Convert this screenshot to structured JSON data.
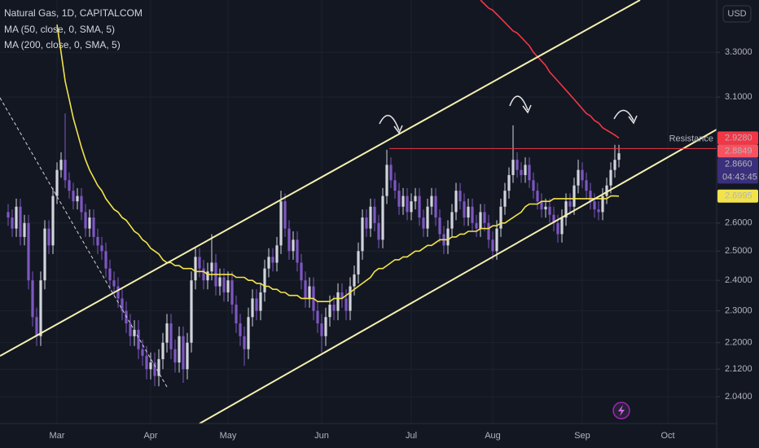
{
  "chart_data": {
    "type": "candlestick",
    "title": "Natural Gas, 1D, CAPITALCOM",
    "currency": "USD",
    "log_scale": true,
    "grid": true,
    "up_color": "#d1d4dc",
    "down_color": "#7e57c2",
    "ylim": [
      1.965,
      3.55
    ],
    "yticks": [
      {
        "value": 3.3,
        "label": "3.3000"
      },
      {
        "value": 3.1,
        "label": "3.1000"
      },
      {
        "value": 2.6,
        "label": "2.6000"
      },
      {
        "value": 2.5,
        "label": "2.5000"
      },
      {
        "value": 2.4,
        "label": "2.4000"
      },
      {
        "value": 2.3,
        "label": "2.3000"
      },
      {
        "value": 2.2,
        "label": "2.2000"
      },
      {
        "value": 2.12,
        "label": "2.1200"
      },
      {
        "value": 2.04,
        "label": "2.0400"
      }
    ],
    "categories": [
      null,
      null,
      null,
      null,
      null,
      null,
      null,
      null,
      null,
      null,
      null,
      null,
      "Mar",
      null,
      null,
      null,
      null,
      null,
      null,
      null,
      null,
      null,
      null,
      null,
      null,
      null,
      null,
      null,
      null,
      null,
      null,
      null,
      null,
      null,
      null,
      "Apr",
      null,
      null,
      null,
      null,
      null,
      null,
      null,
      null,
      null,
      null,
      null,
      null,
      null,
      null,
      null,
      null,
      null,
      null,
      "May",
      null,
      null,
      null,
      null,
      null,
      null,
      null,
      null,
      null,
      null,
      null,
      null,
      null,
      null,
      null,
      null,
      null,
      null,
      null,
      null,
      null,
      null,
      "Jun",
      null,
      null,
      null,
      null,
      null,
      null,
      null,
      null,
      null,
      null,
      null,
      null,
      null,
      null,
      null,
      null,
      null,
      null,
      null,
      null,
      null,
      "Jul",
      null,
      null,
      null,
      null,
      null,
      null,
      null,
      null,
      null,
      null,
      null,
      null,
      null,
      null,
      null,
      null,
      null,
      null,
      null,
      "Aug",
      null,
      null,
      null,
      null,
      null,
      null,
      null,
      null,
      null,
      null,
      null,
      null,
      null,
      null,
      null,
      null,
      null,
      null,
      null,
      null,
      null,
      "Sep",
      null,
      null,
      null,
      null,
      null,
      null,
      null,
      null,
      null,
      null,
      null,
      null,
      null,
      null,
      null,
      null,
      null,
      null,
      null,
      null,
      "Oct",
      null,
      null,
      null,
      null,
      null,
      null,
      null,
      null,
      null,
      null
    ],
    "open": [
      2.64,
      2.62,
      2.58,
      2.66,
      2.55,
      2.6,
      2.4,
      2.28,
      2.22,
      2.4,
      2.58,
      2.52,
      2.7,
      2.8,
      2.84,
      2.76,
      2.72,
      2.68,
      2.7,
      2.64,
      2.58,
      2.62,
      2.55,
      2.52,
      2.5,
      2.44,
      2.4,
      2.38,
      2.34,
      2.3,
      2.26,
      2.22,
      2.24,
      2.18,
      2.16,
      2.12,
      2.14,
      2.1,
      2.15,
      2.2,
      2.26,
      2.18,
      2.14,
      2.22,
      2.12,
      2.2,
      2.4,
      2.48,
      2.44,
      2.4,
      2.43,
      2.46,
      2.38,
      2.41,
      2.36,
      2.4,
      2.32,
      2.26,
      2.22,
      2.18,
      2.28,
      2.34,
      2.3,
      2.36,
      2.44,
      2.48,
      2.46,
      2.52,
      2.68,
      2.58,
      2.5,
      2.54,
      2.46,
      2.4,
      2.34,
      2.38,
      2.3,
      2.26,
      2.22,
      2.28,
      2.32,
      2.3,
      2.36,
      2.34,
      2.3,
      2.38,
      2.42,
      2.5,
      2.62,
      2.58,
      2.66,
      2.6,
      2.54,
      2.7,
      2.82,
      2.76,
      2.72,
      2.66,
      2.7,
      2.64,
      2.68,
      2.7,
      2.62,
      2.58,
      2.66,
      2.7,
      2.62,
      2.56,
      2.52,
      2.58,
      2.64,
      2.72,
      2.68,
      2.62,
      2.66,
      2.6,
      2.58,
      2.64,
      2.6,
      2.54,
      2.5,
      2.58,
      2.66,
      2.72,
      2.78,
      2.84,
      2.8,
      2.78,
      2.82,
      2.76,
      2.72,
      2.68,
      2.65,
      2.66,
      2.63,
      2.6,
      2.56,
      2.62,
      2.68,
      2.66,
      2.74,
      2.8,
      2.76,
      2.72,
      2.68,
      2.65,
      2.64,
      2.7,
      2.74,
      2.8,
      2.84,
      null,
      null,
      null,
      null,
      null,
      null,
      null,
      null,
      null,
      null,
      null,
      null,
      null,
      null,
      null,
      null,
      null,
      null,
      null,
      null,
      null,
      null
    ],
    "high": [
      2.67,
      2.65,
      2.69,
      2.69,
      2.63,
      2.63,
      2.43,
      2.31,
      2.43,
      2.61,
      2.61,
      2.73,
      2.83,
      2.87,
      3.03,
      2.79,
      2.75,
      2.73,
      2.73,
      2.67,
      2.65,
      2.65,
      2.58,
      2.55,
      2.53,
      2.47,
      2.43,
      2.41,
      2.37,
      2.33,
      2.29,
      2.27,
      2.27,
      2.21,
      2.19,
      2.17,
      2.17,
      2.18,
      2.23,
      2.29,
      2.29,
      2.21,
      2.25,
      2.25,
      2.23,
      2.43,
      2.51,
      2.51,
      2.47,
      2.46,
      2.56,
      2.49,
      2.44,
      2.44,
      2.43,
      2.43,
      2.35,
      2.29,
      2.25,
      2.31,
      2.37,
      2.37,
      2.39,
      2.47,
      2.51,
      2.51,
      2.55,
      2.72,
      2.71,
      2.61,
      2.57,
      2.57,
      2.49,
      2.43,
      2.41,
      2.41,
      2.33,
      2.29,
      2.31,
      2.35,
      2.35,
      2.39,
      2.39,
      2.37,
      2.41,
      2.45,
      2.53,
      2.65,
      2.65,
      2.69,
      2.69,
      2.63,
      2.73,
      2.88,
      2.85,
      2.79,
      2.75,
      2.73,
      2.73,
      2.71,
      2.73,
      2.73,
      2.65,
      2.69,
      2.73,
      2.73,
      2.65,
      2.59,
      2.61,
      2.67,
      2.75,
      2.75,
      2.71,
      2.69,
      2.69,
      2.63,
      2.67,
      2.67,
      2.63,
      2.57,
      2.61,
      2.69,
      2.75,
      2.81,
      2.98,
      2.87,
      2.83,
      2.85,
      2.85,
      2.79,
      2.75,
      2.71,
      2.69,
      2.69,
      2.66,
      2.63,
      2.65,
      2.71,
      2.71,
      2.77,
      2.84,
      2.83,
      2.79,
      2.75,
      2.71,
      2.68,
      2.73,
      2.77,
      2.83,
      2.9,
      2.9,
      null,
      null,
      null,
      null,
      null,
      null,
      null,
      null,
      null,
      null,
      null,
      null,
      null,
      null,
      null,
      null,
      null,
      null,
      null,
      null,
      null,
      null
    ],
    "low": [
      2.59,
      2.55,
      2.55,
      2.52,
      2.52,
      2.37,
      2.25,
      2.19,
      2.19,
      2.37,
      2.49,
      2.49,
      2.67,
      2.77,
      2.73,
      2.69,
      2.65,
      2.65,
      2.61,
      2.55,
      2.55,
      2.52,
      2.49,
      2.47,
      2.41,
      2.37,
      2.35,
      2.31,
      2.27,
      2.23,
      2.19,
      2.19,
      2.15,
      2.13,
      2.09,
      2.09,
      2.07,
      2.07,
      2.12,
      2.17,
      2.15,
      2.11,
      2.11,
      2.08,
      2.09,
      2.17,
      2.37,
      2.41,
      2.37,
      2.37,
      2.4,
      2.35,
      2.35,
      2.33,
      2.33,
      2.29,
      2.23,
      2.19,
      2.13,
      2.15,
      2.25,
      2.27,
      2.27,
      2.33,
      2.41,
      2.43,
      2.43,
      2.49,
      2.55,
      2.47,
      2.47,
      2.43,
      2.37,
      2.31,
      2.31,
      2.27,
      2.23,
      2.17,
      2.19,
      2.25,
      2.27,
      2.27,
      2.31,
      2.27,
      2.27,
      2.35,
      2.39,
      2.47,
      2.55,
      2.55,
      2.57,
      2.51,
      2.51,
      2.67,
      2.73,
      2.69,
      2.63,
      2.63,
      2.61,
      2.61,
      2.65,
      2.59,
      2.55,
      2.55,
      2.63,
      2.59,
      2.53,
      2.49,
      2.49,
      2.55,
      2.61,
      2.65,
      2.59,
      2.59,
      2.57,
      2.55,
      2.55,
      2.57,
      2.51,
      2.47,
      2.47,
      2.55,
      2.63,
      2.69,
      2.75,
      2.77,
      2.75,
      2.75,
      2.73,
      2.69,
      2.65,
      2.62,
      2.62,
      2.6,
      2.57,
      2.53,
      2.53,
      2.59,
      2.63,
      2.63,
      2.71,
      2.73,
      2.69,
      2.65,
      2.62,
      2.61,
      2.61,
      2.67,
      2.71,
      2.77,
      2.81,
      null,
      null,
      null,
      null,
      null,
      null,
      null,
      null,
      null,
      null,
      null,
      null,
      null,
      null,
      null,
      null,
      null,
      null,
      null,
      null,
      null,
      null
    ],
    "close": [
      2.62,
      2.58,
      2.66,
      2.55,
      2.6,
      2.4,
      2.28,
      2.22,
      2.4,
      2.58,
      2.52,
      2.7,
      2.8,
      2.84,
      2.76,
      2.72,
      2.68,
      2.7,
      2.64,
      2.58,
      2.62,
      2.55,
      2.52,
      2.5,
      2.44,
      2.4,
      2.38,
      2.34,
      2.3,
      2.26,
      2.22,
      2.24,
      2.18,
      2.16,
      2.12,
      2.14,
      2.1,
      2.15,
      2.2,
      2.26,
      2.18,
      2.14,
      2.22,
      2.12,
      2.2,
      2.4,
      2.48,
      2.44,
      2.4,
      2.43,
      2.46,
      2.38,
      2.41,
      2.36,
      2.4,
      2.32,
      2.26,
      2.22,
      2.18,
      2.28,
      2.34,
      2.3,
      2.36,
      2.44,
      2.48,
      2.46,
      2.52,
      2.68,
      2.58,
      2.5,
      2.54,
      2.46,
      2.4,
      2.34,
      2.38,
      2.3,
      2.26,
      2.22,
      2.28,
      2.32,
      2.3,
      2.36,
      2.34,
      2.3,
      2.38,
      2.42,
      2.5,
      2.62,
      2.58,
      2.66,
      2.6,
      2.54,
      2.7,
      2.82,
      2.76,
      2.72,
      2.66,
      2.7,
      2.64,
      2.68,
      2.7,
      2.62,
      2.58,
      2.66,
      2.7,
      2.62,
      2.56,
      2.52,
      2.58,
      2.64,
      2.72,
      2.68,
      2.62,
      2.66,
      2.6,
      2.58,
      2.64,
      2.6,
      2.54,
      2.5,
      2.58,
      2.66,
      2.72,
      2.78,
      2.84,
      2.8,
      2.78,
      2.82,
      2.76,
      2.72,
      2.68,
      2.65,
      2.66,
      2.63,
      2.6,
      2.56,
      2.62,
      2.68,
      2.66,
      2.74,
      2.8,
      2.76,
      2.72,
      2.68,
      2.65,
      2.64,
      2.7,
      2.74,
      2.8,
      2.84,
      2.866,
      null,
      null,
      null,
      null,
      null,
      null,
      null,
      null,
      null,
      null,
      null,
      null,
      null,
      null,
      null,
      null,
      null,
      null,
      null,
      null,
      null,
      null
    ],
    "series": [
      {
        "name": "MA (50, close, 0, SMA, 5)",
        "color": "#f2e34a",
        "values": [
          null,
          null,
          null,
          null,
          null,
          null,
          null,
          null,
          null,
          null,
          null,
          null,
          3.43,
          3.3,
          3.17,
          3.09,
          3.01,
          2.95,
          2.89,
          2.84,
          2.8,
          2.77,
          2.74,
          2.72,
          2.69,
          2.67,
          2.65,
          2.64,
          2.62,
          2.61,
          2.59,
          2.57,
          2.56,
          2.54,
          2.53,
          2.51,
          2.5,
          2.49,
          2.47,
          2.46,
          2.46,
          2.45,
          2.45,
          2.44,
          2.44,
          2.44,
          2.43,
          2.43,
          2.43,
          2.42,
          2.42,
          2.42,
          2.42,
          2.42,
          2.42,
          2.42,
          2.41,
          2.41,
          2.41,
          2.4,
          2.4,
          2.39,
          2.39,
          2.38,
          2.38,
          2.37,
          2.37,
          2.36,
          2.36,
          2.35,
          2.35,
          2.35,
          2.34,
          2.34,
          2.34,
          2.34,
          2.33,
          2.33,
          2.33,
          2.33,
          2.34,
          2.34,
          2.34,
          2.35,
          2.36,
          2.37,
          2.38,
          2.39,
          2.4,
          2.41,
          2.43,
          2.44,
          2.44,
          2.45,
          2.46,
          2.47,
          2.47,
          2.48,
          2.48,
          2.49,
          2.5,
          2.5,
          2.51,
          2.52,
          2.52,
          2.53,
          2.54,
          2.54,
          2.54,
          2.55,
          2.55,
          2.56,
          2.56,
          2.57,
          2.57,
          2.57,
          2.58,
          2.58,
          2.58,
          2.59,
          2.59,
          2.6,
          2.6,
          2.61,
          2.62,
          2.63,
          2.64,
          2.66,
          2.67,
          2.67,
          2.67,
          2.68,
          2.68,
          2.68,
          2.69,
          2.69,
          2.69,
          2.69,
          2.69,
          2.69,
          2.69,
          2.69,
          2.69,
          2.69,
          2.69,
          2.69,
          2.69,
          2.69,
          2.7,
          2.7,
          2.6995,
          null,
          null,
          null,
          null,
          null,
          null,
          null,
          null,
          null,
          null,
          null,
          null,
          null,
          null,
          null,
          null,
          null,
          null,
          null,
          null,
          null,
          null
        ]
      },
      {
        "name": "MA (200, close, 0, SMA, 5)",
        "color": "#f23645",
        "values": [
          null,
          null,
          null,
          null,
          null,
          null,
          null,
          null,
          null,
          null,
          null,
          null,
          null,
          null,
          null,
          null,
          null,
          null,
          null,
          null,
          null,
          null,
          null,
          null,
          null,
          null,
          null,
          null,
          null,
          null,
          null,
          null,
          null,
          null,
          null,
          null,
          null,
          null,
          null,
          null,
          null,
          null,
          null,
          null,
          null,
          null,
          null,
          null,
          null,
          null,
          null,
          null,
          null,
          null,
          null,
          null,
          null,
          null,
          null,
          null,
          null,
          null,
          null,
          null,
          null,
          null,
          null,
          null,
          null,
          null,
          null,
          null,
          null,
          null,
          null,
          null,
          null,
          null,
          null,
          null,
          null,
          null,
          null,
          null,
          null,
          null,
          null,
          null,
          null,
          null,
          null,
          null,
          null,
          null,
          null,
          null,
          null,
          null,
          null,
          null,
          null,
          null,
          null,
          null,
          null,
          null,
          null,
          null,
          null,
          null,
          null,
          null,
          null,
          null,
          null,
          null,
          3.55,
          3.53,
          3.51,
          3.5,
          3.48,
          3.46,
          3.44,
          3.42,
          3.4,
          3.39,
          3.37,
          3.35,
          3.33,
          3.3,
          3.28,
          3.26,
          3.24,
          3.21,
          3.19,
          3.17,
          3.15,
          3.13,
          3.11,
          3.09,
          3.07,
          3.05,
          3.03,
          3.02,
          3.0,
          2.99,
          2.97,
          2.96,
          2.95,
          2.94,
          2.928,
          null,
          null,
          null,
          null,
          null,
          null,
          null,
          null,
          null,
          null,
          null,
          null,
          null,
          null,
          null,
          null,
          null,
          null,
          null,
          null,
          null,
          null
        ]
      }
    ],
    "resistance": {
      "label": "Resistance",
      "value": 2.8849,
      "color": "#f23645"
    },
    "price_labels": [
      {
        "value": 2.928,
        "label": "2.9280",
        "color": "#f23645",
        "text_color": "#ffffff"
      },
      {
        "value": 2.8849,
        "label": "2.8849",
        "color": "#f7525f",
        "text_color": "#ffffff"
      },
      {
        "value": 2.866,
        "label": "2.8660",
        "color": "#3a2f7a",
        "text_color": "#ffffff",
        "countdown": "04:43:45"
      },
      {
        "value": 2.6995,
        "label": "2.6995",
        "color": "#f2e34a",
        "text_color": "#131722"
      }
    ]
  }
}
